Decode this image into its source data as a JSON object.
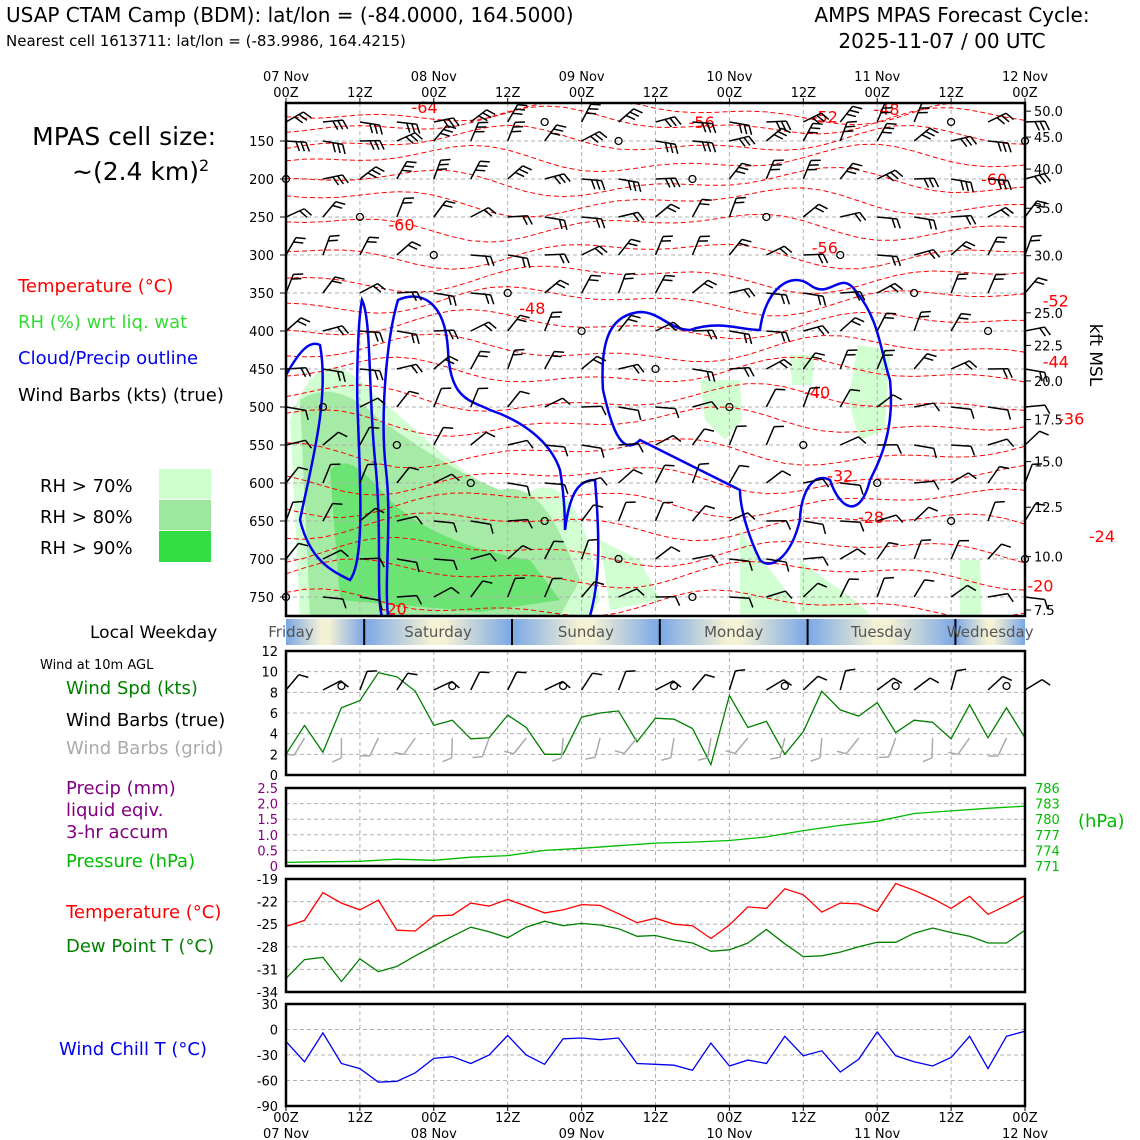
{
  "header": {
    "station_title": "USAP CTAM Camp (BDM): lat/lon = (-84.0000, 164.5000)",
    "nearest_cell": "Nearest cell 1613711: lat/lon = (-83.9986, 164.4215)",
    "forecast_title_line1": "AMPS MPAS Forecast Cycle:",
    "forecast_title_line2": "2025-11-07 / 00 UTC"
  },
  "legend": {
    "cell_size_line1": "MPAS cell size:",
    "cell_size_line2": "~(2.4 km)",
    "cell_size_sup": "2",
    "temperature": "Temperature (°C)",
    "rh": "RH (%) wrt liq. wat",
    "cloud": "Cloud/Precip outline",
    "wind": "Wind Barbs (kts) (true)",
    "rh70": "RH > 70%",
    "rh80": "RH > 80%",
    "rh90": "RH > 90%",
    "local_weekday": "Local Weekday",
    "wind_10m": "Wind at 10m AGL",
    "wind_spd": "Wind Spd (kts)",
    "wind_barbs_true": "Wind Barbs (true)",
    "wind_barbs_grid": "Wind Barbs (grid)",
    "precip_line1": "Precip (mm)",
    "precip_line2": "liquid eqiv.",
    "precip_line3": "3-hr accum",
    "pressure": "Pressure (hPa)",
    "pressure_unit": "(hPa)",
    "temp2": "Temperature (°C)",
    "dewpoint": "Dew Point T (°C)",
    "windchill": "Wind Chill T (°C)",
    "kft_label": "kft MSL"
  },
  "colors": {
    "temperature": "#ff0000",
    "rh_text": "#33dd33",
    "cloud": "#0000ee",
    "wind_speed": "#008000",
    "wind_grid": "#aaaaaa",
    "precip": "#800080",
    "pressure": "#00bb00",
    "dewpoint": "#008000",
    "windchill": "#0000ee",
    "rh70": "#ccffcc",
    "rh80": "#9ee89e",
    "rh90": "#33dd44",
    "weekday_blue": "#7aa7e6",
    "weekday_cream": "#f4f1d4"
  },
  "time_axis": {
    "top_date_labels": [
      "07 Nov",
      "08 Nov",
      "09 Nov",
      "10 Nov",
      "11 Nov",
      "12 Nov"
    ],
    "hour_labels": [
      "00Z",
      "12Z",
      "00Z",
      "12Z",
      "00Z",
      "12Z",
      "00Z",
      "12Z",
      "00Z",
      "12Z",
      "00Z"
    ],
    "bottom_date_labels": [
      "07 Nov",
      "08 Nov",
      "09 Nov",
      "10 Nov",
      "11 Nov",
      "12 Nov"
    ],
    "weekdays": [
      "Friday",
      "Saturday",
      "Sunday",
      "Monday",
      "Tuesday",
      "Wednesday"
    ]
  },
  "chart_data": [
    {
      "type": "heatmap",
      "name": "cross-section",
      "x_range_hours": [
        0,
        120
      ],
      "pressure_ticks": [
        150,
        200,
        250,
        300,
        350,
        400,
        450,
        500,
        550,
        600,
        650,
        700,
        750
      ],
      "kft_ticks": [
        "50.0",
        "45.0",
        "40.0",
        "35.0",
        "30.0",
        "25.0",
        "22.5",
        "20.0",
        "17.5",
        "15.0",
        "12.5",
        "10.0",
        "7.5"
      ],
      "kft_values": [
        50,
        45,
        40,
        35,
        30,
        25,
        22.5,
        20,
        17.5,
        15,
        12.5,
        10,
        7.5
      ],
      "ylim_hpa": [
        100,
        775
      ],
      "grid": true,
      "temperature_labels": [
        {
          "t": 9,
          "p": 105,
          "label": "-64"
        },
        {
          "t": 27,
          "p": 125,
          "label": "-56"
        },
        {
          "t": 35,
          "p": 118,
          "label": "-52"
        },
        {
          "t": 39,
          "p": 108,
          "label": "-48"
        },
        {
          "t": 46,
          "p": 200,
          "label": "-60"
        },
        {
          "t": 7.5,
          "p": 260,
          "label": "-60"
        },
        {
          "t": 35,
          "p": 290,
          "label": "-56"
        },
        {
          "t": 50,
          "p": 360,
          "label": "-52"
        },
        {
          "t": 16,
          "p": 370,
          "label": "-48"
        },
        {
          "t": 50,
          "p": 440,
          "label": "-44"
        },
        {
          "t": 34.5,
          "p": 480,
          "label": "-40"
        },
        {
          "t": 51,
          "p": 515,
          "label": "-36"
        },
        {
          "t": 36,
          "p": 590,
          "label": "-32"
        },
        {
          "t": 38,
          "p": 645,
          "label": "-28"
        },
        {
          "t": 53,
          "p": 670,
          "label": "-24"
        },
        {
          "t": 49,
          "p": 735,
          "label": "-20"
        },
        {
          "t": 7,
          "p": 765,
          "label": "-20"
        }
      ],
      "calm_markers_shown": true,
      "cloud_outline_shown": true
    },
    {
      "type": "line",
      "name": "Wind Spd (kts)",
      "ylim": [
        0,
        12
      ],
      "yticks": [
        0,
        2,
        4,
        6,
        8,
        10,
        12
      ],
      "x_hours": [
        0,
        3,
        6,
        9,
        12,
        15,
        18,
        21,
        24,
        27,
        30,
        33,
        36,
        39,
        42,
        45,
        48,
        51,
        54,
        57,
        60,
        63,
        66,
        69,
        72,
        75,
        78,
        81,
        84,
        87,
        90,
        93,
        96,
        99,
        102,
        105,
        108,
        111,
        114,
        117,
        120
      ],
      "values": [
        2,
        4.8,
        2.2,
        6.5,
        7.2,
        9.9,
        9.5,
        8.1,
        4.8,
        5.3,
        3.5,
        3.6,
        5.8,
        4.6,
        2,
        2,
        5.6,
        6,
        6.2,
        3.2,
        5.5,
        5.4,
        4.5,
        1,
        7.7,
        4.6,
        5.2,
        2,
        4.2,
        8.1,
        6.3,
        5.7,
        7,
        4.1,
        5.3,
        5.1,
        3.5,
        6.8,
        3.6,
        6.5,
        3.6
      ]
    },
    {
      "type": "line",
      "name": "Pressure (hPa)",
      "precip_ylim": [
        0,
        2.5
      ],
      "precip_ticks": [
        "0",
        "0.5",
        "1.0",
        "1.5",
        "2.0",
        "2.5"
      ],
      "pressure_ylim": [
        771,
        786
      ],
      "pressure_ticks": [
        "771",
        "774",
        "777",
        "780",
        "783",
        "786"
      ],
      "x_hours": [
        0,
        6,
        12,
        18,
        24,
        30,
        36,
        42,
        48,
        54,
        60,
        66,
        72,
        78,
        84,
        90,
        96,
        102,
        108,
        114,
        120
      ],
      "values": [
        771.7,
        771.8,
        771.9,
        772.3,
        772.1,
        772.7,
        773.0,
        774.0,
        774.4,
        774.9,
        775.4,
        775.6,
        775.9,
        776.6,
        777.8,
        778.8,
        779.6,
        781.1,
        781.6,
        782.1,
        782.5
      ],
      "precip_values_mm": [
        0,
        0,
        0,
        0,
        0,
        0,
        0,
        0,
        0,
        0,
        0,
        0,
        0,
        0,
        0,
        0,
        0,
        0,
        0,
        0,
        0
      ]
    },
    {
      "type": "line",
      "name": "Temperature / Dew Point",
      "ylim": [
        -34,
        -19
      ],
      "yticks": [
        -34,
        -31,
        -28,
        -25,
        -22,
        -19
      ],
      "x_hours": [
        0,
        3,
        6,
        9,
        12,
        15,
        18,
        21,
        24,
        27,
        30,
        33,
        36,
        39,
        42,
        45,
        48,
        51,
        54,
        57,
        60,
        63,
        66,
        69,
        72,
        75,
        78,
        81,
        84,
        87,
        90,
        93,
        96,
        99,
        102,
        105,
        108,
        111,
        114,
        117,
        120
      ],
      "series": [
        {
          "name": "Temperature (°C)",
          "values": [
            -25.3,
            -24.5,
            -20.8,
            -22.2,
            -23.1,
            -21.8,
            -25.8,
            -25.9,
            -23.9,
            -23.8,
            -22.2,
            -22.6,
            -21.7,
            -22.6,
            -23.5,
            -23.1,
            -22.4,
            -22.5,
            -23.6,
            -24.8,
            -24.2,
            -25.0,
            -25.2,
            -26.9,
            -25.1,
            -22.7,
            -22.9,
            -20.3,
            -21.1,
            -23.4,
            -22.2,
            -22.3,
            -23.3,
            -19.6,
            -20.5,
            -21.6,
            -22.9,
            -21.3,
            -23.7,
            -22.5,
            -21.2
          ]
        },
        {
          "name": "Dew Point T (°C)",
          "values": [
            -32.2,
            -29.7,
            -29.4,
            -32.6,
            -29.6,
            -31.3,
            -30.6,
            -29.2,
            -27.9,
            -26.6,
            -25.4,
            -26.0,
            -26.8,
            -25.4,
            -24.6,
            -25.2,
            -24.9,
            -25.1,
            -25.6,
            -26.6,
            -26.5,
            -27.1,
            -27.5,
            -28.6,
            -28.4,
            -27.5,
            -25.7,
            -27.6,
            -29.3,
            -29.2,
            -28.7,
            -28.0,
            -27.4,
            -27.4,
            -26.2,
            -25.5,
            -26.1,
            -26.6,
            -27.5,
            -27.5,
            -25.8
          ]
        }
      ]
    },
    {
      "type": "line",
      "name": "Wind Chill T (°C)",
      "ylim": [
        -90,
        30
      ],
      "yticks": [
        -90,
        -60,
        -30,
        0,
        30
      ],
      "x_hours": [
        0,
        3,
        6,
        9,
        12,
        15,
        18,
        21,
        24,
        27,
        30,
        33,
        36,
        39,
        42,
        45,
        48,
        51,
        54,
        57,
        60,
        63,
        66,
        69,
        72,
        75,
        78,
        81,
        84,
        87,
        90,
        93,
        96,
        99,
        102,
        105,
        108,
        111,
        114,
        117,
        120
      ],
      "values": [
        -14,
        -38,
        -4,
        -40,
        -46,
        -62,
        -61,
        -51,
        -34,
        -32,
        -40,
        -30,
        -7,
        -30,
        -41,
        -11,
        -10,
        -12,
        -10,
        -40,
        -41,
        -42,
        -48,
        -16,
        -43,
        -36,
        -40,
        -8,
        -31,
        -25,
        -50,
        -35,
        -3,
        -31,
        -38,
        -43,
        -33,
        -8,
        -46,
        -8,
        -2
      ]
    }
  ]
}
